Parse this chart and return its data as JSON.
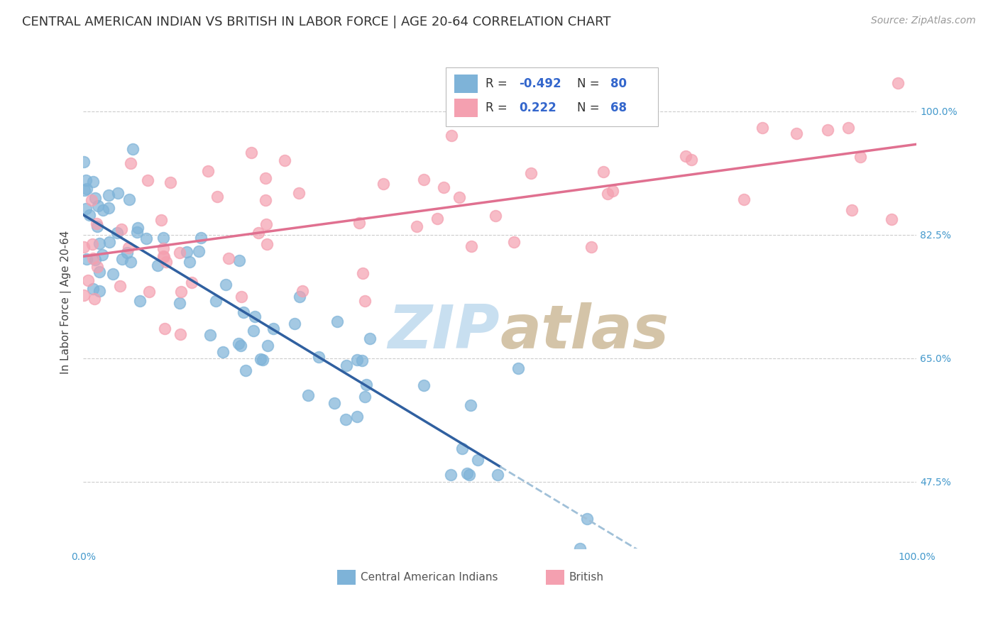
{
  "title": "CENTRAL AMERICAN INDIAN VS BRITISH IN LABOR FORCE | AGE 20-64 CORRELATION CHART",
  "source": "Source: ZipAtlas.com",
  "ylabel": "In Labor Force | Age 20-64",
  "xlim": [
    0.0,
    1.0
  ],
  "ylim": [
    0.38,
    1.08
  ],
  "xticks": [
    0.0,
    0.2,
    0.4,
    0.6,
    0.8,
    1.0
  ],
  "xticklabels": [
    "0.0%",
    "",
    "",
    "",
    "",
    "100.0%"
  ],
  "ytick_positions": [
    0.475,
    0.65,
    0.825,
    1.0
  ],
  "ytick_labels": [
    "47.5%",
    "65.0%",
    "82.5%",
    "100.0%"
  ],
  "blue_R": -0.492,
  "blue_N": 80,
  "pink_R": 0.222,
  "pink_N": 68,
  "blue_color": "#7EB3D8",
  "pink_color": "#F4A0B0",
  "blue_line_color": "#3060A0",
  "pink_line_color": "#E07090",
  "dashed_line_color": "#A0C0D8",
  "watermark_zip_color": "#C8DFF0",
  "watermark_atlas_color": "#D8C8B0",
  "legend_label_blue": "Central American Indians",
  "legend_label_pink": "British",
  "title_fontsize": 13,
  "axis_label_fontsize": 11,
  "tick_fontsize": 10,
  "legend_fontsize": 12,
  "source_fontsize": 10,
  "background_color": "#FFFFFF",
  "grid_color": "#CCCCCC",
  "blue_seed": 42,
  "pink_seed": 99
}
